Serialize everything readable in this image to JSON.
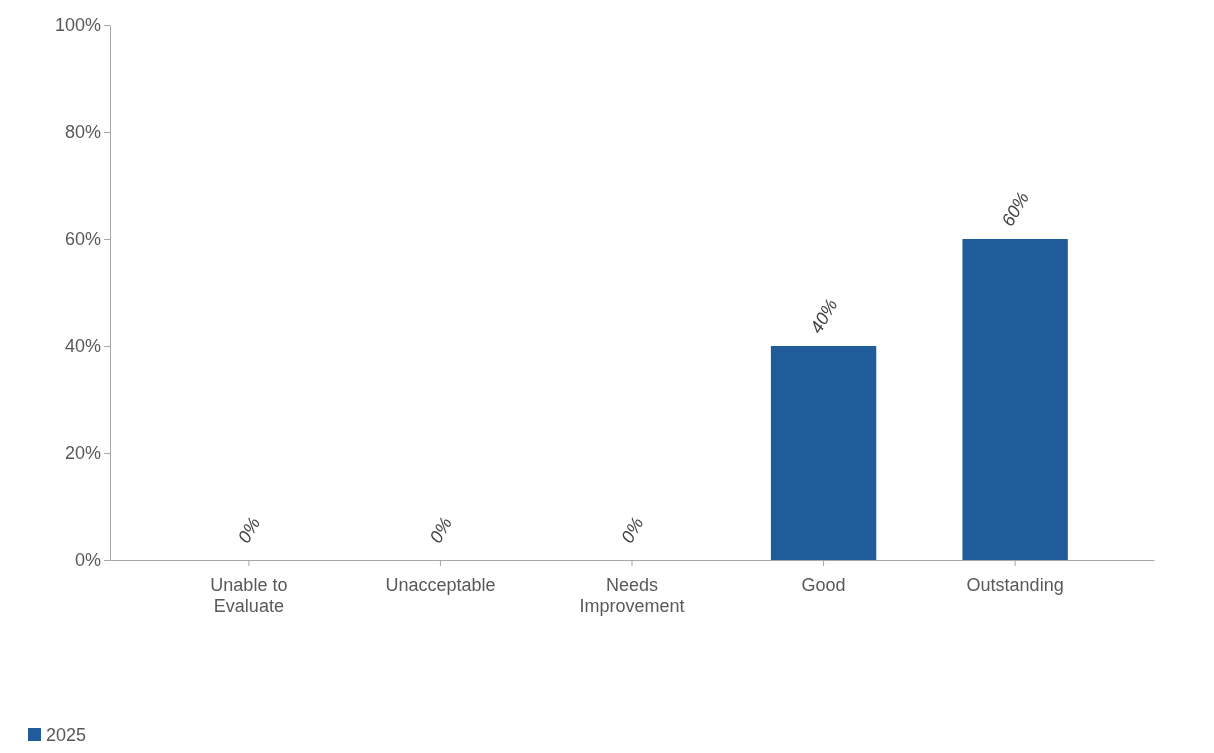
{
  "chart_data": {
    "type": "bar",
    "categories": [
      "Unable to Evaluate",
      "Unacceptable",
      "Needs Improvement",
      "Good",
      "Outstanding"
    ],
    "series": [
      {
        "name": "2025",
        "color": "#1f5c99",
        "values": [
          0,
          0,
          0,
          40,
          60
        ],
        "value_labels": [
          "0%",
          "0%",
          "0%",
          "40%",
          "60%"
        ]
      }
    ],
    "ylim": [
      0,
      100
    ],
    "yticks": [
      {
        "value": 0,
        "label": "0%"
      },
      {
        "value": 20,
        "label": "20%"
      },
      {
        "value": 40,
        "label": "40%"
      },
      {
        "value": 60,
        "label": "60%"
      },
      {
        "value": 80,
        "label": "80%"
      },
      {
        "value": 100,
        "label": "100%"
      }
    ],
    "grid": false,
    "legend": "bottom left"
  }
}
